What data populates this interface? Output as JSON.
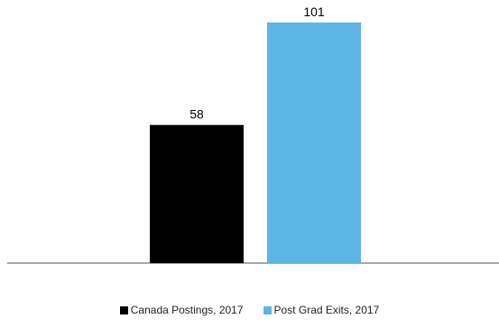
{
  "chart_data": {
    "type": "bar",
    "categories": [
      "Canada Postings, 2017",
      "Post Grad Exits, 2017"
    ],
    "values": [
      58,
      101
    ],
    "colors": [
      "#000000",
      "#5db5e6"
    ],
    "ylim": [
      0,
      101
    ],
    "title": "",
    "xlabel": "",
    "ylabel": "",
    "grid": false,
    "legend_position": "bottom",
    "axis_color": "#8c8c8c"
  }
}
